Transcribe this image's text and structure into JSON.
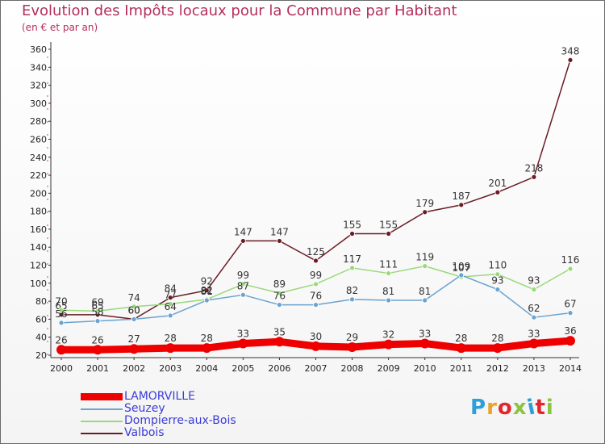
{
  "header": {
    "title": "Evolution des Impôts locaux pour la Commune par Habitant",
    "subtitle": "(en € et par an)"
  },
  "logo": {
    "text": "Proxiti",
    "colors": [
      "#2f9fd8",
      "#e8a42a",
      "#e4262c",
      "#8bc43f",
      "#2f9fd8",
      "#e4262c",
      "#8bc43f"
    ]
  },
  "chart_data": {
    "type": "line",
    "title": "Evolution des Impôts locaux pour la Commune par Habitant",
    "subtitle": "(en € et par an)",
    "xlabel": "",
    "ylabel": "",
    "x": [
      "2000",
      "2001",
      "2002",
      "2003",
      "2004",
      "2005",
      "2006",
      "2007",
      "2008",
      "2009",
      "2010",
      "2011",
      "2012",
      "2013",
      "2014"
    ],
    "ylim": [
      20,
      360
    ],
    "yticks": [
      20,
      40,
      60,
      80,
      100,
      120,
      140,
      160,
      180,
      200,
      220,
      240,
      260,
      280,
      300,
      320,
      340,
      360
    ],
    "grid": false,
    "legend": "bottom-left",
    "series": [
      {
        "name": "Valbois",
        "color": "#6a1c24",
        "values": [
          65,
          65,
          60,
          84,
          92,
          147,
          147,
          125,
          155,
          155,
          179,
          187,
          201,
          218,
          348
        ],
        "labels": [
          "65",
          "65",
          "60",
          "84",
          "92",
          "147",
          "147",
          "125",
          "155",
          "155",
          "179",
          "187",
          "201",
          "218",
          "348"
        ]
      },
      {
        "name": "Dompierre-aux-Bois",
        "color": "#99d97a",
        "values": [
          70,
          69,
          74,
          77,
          82,
          99,
          89,
          99,
          117,
          111,
          119,
          107,
          110,
          93,
          116
        ],
        "labels": [
          "70",
          "69",
          "74",
          "77",
          "82",
          "99",
          "89",
          "99",
          "117",
          "111",
          "119",
          "107",
          "110",
          "93",
          "116"
        ]
      },
      {
        "name": "Seuzey",
        "color": "#6aa3d0",
        "values": [
          56,
          58,
          60,
          64,
          81,
          87,
          76,
          76,
          82,
          81,
          81,
          109,
          93,
          62,
          67
        ],
        "labels": [
          "56",
          "58",
          "60",
          "64",
          "81",
          "87",
          "76",
          "76",
          "82",
          "81",
          "81",
          "109",
          "93",
          "62",
          "67"
        ]
      },
      {
        "name": "LAMORVILLE",
        "color": "#ee0000",
        "values": [
          26,
          26,
          27,
          28,
          28,
          33,
          35,
          30,
          29,
          32,
          33,
          28,
          28,
          33,
          36
        ],
        "labels": [
          "26",
          "26",
          "27",
          "28",
          "28",
          "33",
          "35",
          "30",
          "29",
          "32",
          "33",
          "28",
          "28",
          "33",
          "36"
        ]
      }
    ]
  },
  "legend": {
    "items": [
      {
        "name": "LAMORVILLE",
        "color": "#ee0000",
        "text_color": "#3b3bd8",
        "stroke": 9
      },
      {
        "name": "Seuzey",
        "color": "#6aa3d0",
        "text_color": "#3b3bd8",
        "stroke": 2
      },
      {
        "name": "Dompierre-aux-Bois",
        "color": "#99d97a",
        "text_color": "#3b3bd8",
        "stroke": 2
      },
      {
        "name": "Valbois",
        "color": "#6a1c24",
        "text_color": "#3b3bd8",
        "stroke": 2
      }
    ]
  }
}
